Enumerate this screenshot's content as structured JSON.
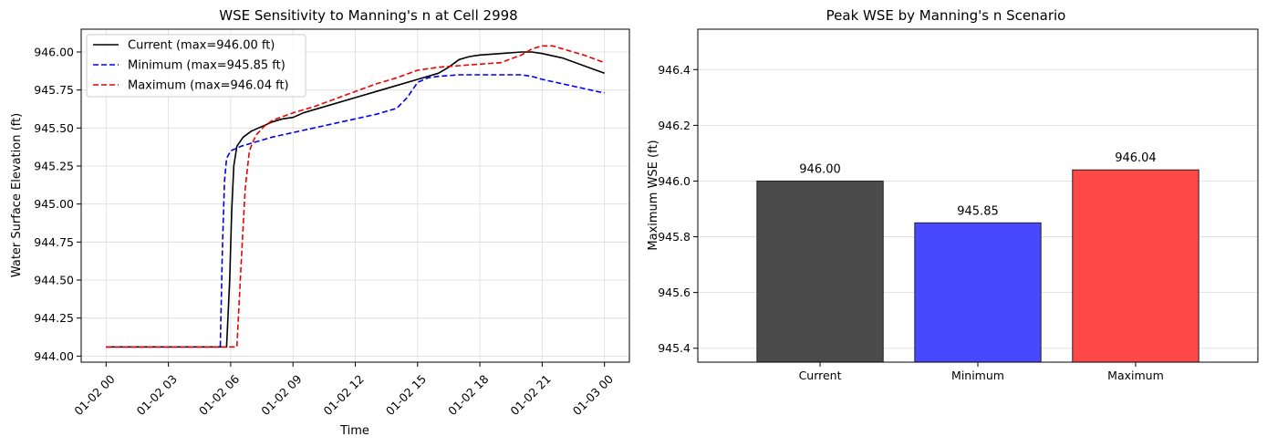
{
  "chart_data": [
    {
      "type": "line",
      "title": "WSE Sensitivity to Manning's n at Cell 2998",
      "xlabel": "Time",
      "ylabel": "Water Surface Elevation (ft)",
      "x_tick_labels": [
        "01-02 00",
        "01-02 03",
        "01-02 06",
        "01-02 09",
        "01-02 12",
        "01-02 15",
        "01-02 18",
        "01-02 21",
        "01-03 00"
      ],
      "x_ticks_hours": [
        0,
        3,
        6,
        9,
        12,
        15,
        18,
        21,
        24
      ],
      "xlim_hours": [
        -1.2,
        25.2
      ],
      "y_ticks": [
        944.0,
        944.25,
        944.5,
        944.75,
        945.0,
        945.25,
        945.5,
        945.75,
        946.0
      ],
      "y_tick_labels": [
        "944.00",
        "944.25",
        "944.50",
        "944.75",
        "945.00",
        "945.25",
        "945.50",
        "945.75",
        "946.00"
      ],
      "ylim": [
        943.96,
        946.15
      ],
      "grid": true,
      "legend_position": "upper-left",
      "series": [
        {
          "name": "Current (max=946.00 ft)",
          "color": "#000000",
          "dash": "solid",
          "x": [
            0,
            5.8,
            5.95,
            6.05,
            6.15,
            6.3,
            6.6,
            7,
            7.5,
            8,
            8.5,
            9,
            9.5,
            10,
            11,
            12,
            13,
            14,
            15,
            16,
            16.5,
            17,
            17.5,
            18,
            19,
            20,
            20.5,
            21,
            22,
            23,
            24
          ],
          "y": [
            944.06,
            944.06,
            944.5,
            944.95,
            945.25,
            945.38,
            945.44,
            945.48,
            945.51,
            945.54,
            945.56,
            945.57,
            945.6,
            945.62,
            945.66,
            945.7,
            945.74,
            945.78,
            945.82,
            945.86,
            945.9,
            945.95,
            945.97,
            945.98,
            945.99,
            946.0,
            946.0,
            945.99,
            945.96,
            945.91,
            945.86
          ]
        },
        {
          "name": "Minimum (max=945.85 ft)",
          "color": "#0000ee",
          "dash": "dashed",
          "x": [
            0,
            5.5,
            5.6,
            5.7,
            5.8,
            6,
            6.5,
            7,
            8,
            9,
            10,
            11,
            12,
            13,
            14,
            14.5,
            15,
            15.5,
            16,
            17,
            18,
            19,
            20,
            20.5,
            21,
            22,
            23,
            24
          ],
          "y": [
            944.06,
            944.06,
            944.7,
            945.15,
            945.3,
            945.35,
            945.38,
            945.4,
            945.44,
            945.47,
            945.5,
            945.53,
            945.56,
            945.59,
            945.63,
            945.7,
            945.8,
            945.83,
            945.84,
            945.85,
            945.85,
            945.85,
            945.85,
            945.84,
            945.82,
            945.79,
            945.76,
            945.73
          ]
        },
        {
          "name": "Maximum (max=946.04 ft)",
          "color": "#ee0000",
          "dash": "dashed",
          "x": [
            0,
            6.3,
            6.5,
            6.7,
            6.9,
            7.2,
            7.6,
            8,
            9,
            10,
            11,
            12,
            13,
            14,
            15,
            16,
            17,
            18,
            19,
            20,
            20.5,
            21,
            21.5,
            22,
            23,
            24
          ],
          "y": [
            944.06,
            944.06,
            944.6,
            945.1,
            945.35,
            945.45,
            945.51,
            945.55,
            945.6,
            945.64,
            945.69,
            945.74,
            945.79,
            945.83,
            945.88,
            945.9,
            945.91,
            945.92,
            945.93,
            945.98,
            946.02,
            946.04,
            946.04,
            946.02,
            945.98,
            945.93
          ]
        }
      ]
    },
    {
      "type": "bar",
      "title": "Peak WSE by Manning's n Scenario",
      "xlabel": "",
      "ylabel": "Maximum WSE (ft)",
      "categories": [
        "Current",
        "Minimum",
        "Maximum"
      ],
      "values": [
        946.0,
        945.85,
        946.04
      ],
      "value_labels": [
        "946.00",
        "945.85",
        "946.04"
      ],
      "colors": [
        "#4b4b4b",
        "#4848ff",
        "#ff4848"
      ],
      "y_ticks": [
        945.4,
        945.6,
        945.8,
        946.0,
        946.2,
        946.4
      ],
      "y_tick_labels": [
        "945.4",
        "945.6",
        "945.8",
        "946.0",
        "946.2",
        "946.4"
      ],
      "ylim": [
        945.35,
        946.545
      ],
      "grid": true
    }
  ]
}
